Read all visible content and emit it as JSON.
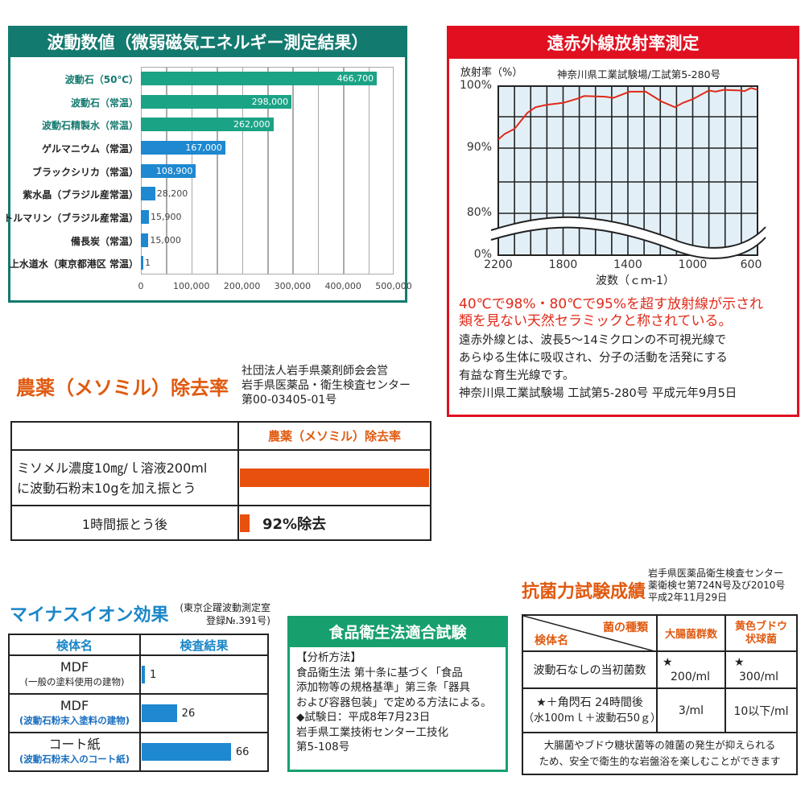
{
  "wave": {
    "title": "波動数値（微弱磁気エネルギー測定結果）",
    "chart_data": {
      "type": "bar",
      "orientation": "horizontal",
      "xlim": [
        0,
        500000
      ],
      "ticks": [
        "0",
        "100,000",
        "200,000",
        "300,000",
        "400,000",
        "500,000"
      ],
      "categories": [
        "波動石（50℃）",
        "波動石（常温）",
        "波動石精製水（常温）",
        "ゲルマニウム（常温）",
        "ブラックシリカ（常温）",
        "紫水晶（ブラジル産常温）",
        "トルマリン（ブラジル産常温）",
        "備長炭（常温）",
        "上水道水（東京都港区 常温）"
      ],
      "values": [
        466700,
        298000,
        262000,
        167000,
        108900,
        28200,
        15900,
        15000,
        1
      ],
      "labels": [
        "466,700",
        "298,000",
        "262,000",
        "167,000",
        "108,900",
        "28,200",
        "15,900",
        "15,000",
        "1"
      ],
      "colors": [
        "#1ba386",
        "#1ba386",
        "#1ba386",
        "#1e88d0",
        "#1e88d0",
        "#1e88d0",
        "#1e88d0",
        "#1e88d0",
        "#1e88d0"
      ]
    }
  },
  "far": {
    "title": "遠赤外線放射率測定",
    "ylabel": "放射率（%）",
    "source": "神奈川県工業試験場/工試第5-280号",
    "chart_data": {
      "type": "line",
      "xlabel": "波数（ｃｍ-1）",
      "xlim": [
        2200,
        600
      ],
      "yticks": [
        "100%",
        "90%",
        "80%",
        "0%"
      ],
      "xticks": [
        "2200",
        "1800",
        "1400",
        "1000",
        "600"
      ],
      "axis_break": true,
      "x": [
        2200,
        2160,
        2100,
        2020,
        1970,
        1900,
        1800,
        1710,
        1670,
        1540,
        1490,
        1390,
        1290,
        1190,
        1110,
        1060,
        1000,
        900,
        860,
        810,
        710,
        680,
        640,
        600
      ],
      "y": [
        91.4,
        92.3,
        93.1,
        95.7,
        96.6,
        97.0,
        97.3,
        98.0,
        98.4,
        98.3,
        98.1,
        99.1,
        99.1,
        97.5,
        96.6,
        97.3,
        97.9,
        99.3,
        99.1,
        99.4,
        99.3,
        99.2,
        99.7,
        99.4
      ],
      "color": "#e02a1a"
    },
    "highlight": [
      "40℃で98%・80℃で95%を超す放射線が示され",
      "類を見ない天然セラミックと称されている。"
    ],
    "body": [
      "遠赤外線とは、波長5～14ミクロンの不可視光線で",
      "あらゆる生体に吸収され、分子の活動を活発にする",
      "有益な育生光線です。",
      "神奈川県工業試験場 工試第5-280号 平成元年9月5日"
    ]
  },
  "pest": {
    "title": "農薬（メソミル）除去率",
    "source": [
      "社団法人岩手県薬剤師会会営",
      "岩手県医薬品・衛生検査センター",
      "第00-03405-01号"
    ],
    "col_header": "農薬（メソミル）除去率",
    "row1": [
      "ミソメル濃度10㎎/ｌ溶液200ml",
      "に波動石粉末10gを加え振とう"
    ],
    "row2": "1時間振とう後",
    "result": "92%除去"
  },
  "ion": {
    "title": "マイナスイオン効果",
    "note": [
      "(東京企躍波動測定室",
      "登録№.391号)"
    ],
    "headers": [
      "検体名",
      "検査結果"
    ],
    "rows": [
      {
        "name": "MDF",
        "sub": "(一般の塗料使用の建物)",
        "value": 1,
        "label": "1"
      },
      {
        "name": "MDF",
        "sub": "(波動石粉末入塗料の建物)",
        "value": 26,
        "label": "26"
      },
      {
        "name": "コート紙",
        "sub": "(波動石粉末入のコート紙)",
        "value": 66,
        "label": "66"
      }
    ]
  },
  "food": {
    "title": "食品衛生法適合試験",
    "lines": [
      "【分析方法】",
      "食品衛生法 第十条に基づく「食品",
      "添加物等の規格基準」第三条「器具",
      "および容器包装」で定める方法による。",
      "◆試験日：平成8年7月23日",
      "岩手県工業技術センター工技化",
      "第5-108号"
    ]
  },
  "anti": {
    "title": "抗菌力試験成績",
    "source": [
      "岩手県医薬品衛生検査センター",
      "薬衛検セ第724N号及び2010号",
      "平成2年11月29日"
    ],
    "h_type": "菌の種類",
    "h_sample": "検体名",
    "h_col1": "大腸菌群数",
    "h_col2": [
      "黄色ブドウ",
      "状球菌"
    ],
    "r1": {
      "name": "波動石なしの当初菌数",
      "star": "★",
      "c1": "200/ml",
      "c2": "300/ml"
    },
    "r2": {
      "name": "★＋角閃石 24時間後",
      "sub": "（水100mｌ＋波動石50ｇ）",
      "c1": "3/ml",
      "c2": "10以下/ml"
    },
    "note": [
      "大腸菌やブドウ糖状菌等の雑菌の発生が抑えられる",
      "ため、安全で衛生的な岩盤浴を楽しむことができます"
    ]
  }
}
